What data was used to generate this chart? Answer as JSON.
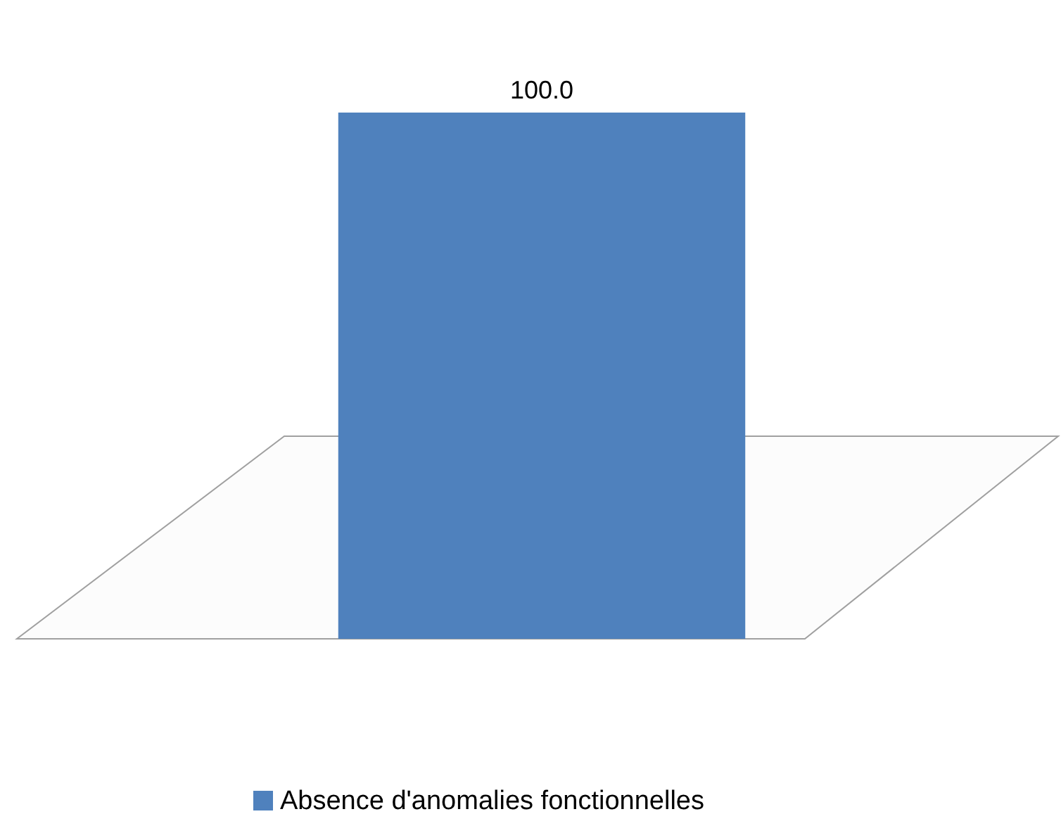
{
  "chart_data": {
    "type": "bar",
    "categories": [
      null
    ],
    "series": [
      {
        "name": "Absence d'anomalies fonctionnelles",
        "color": "#4f81bd",
        "values": [
          100.0
        ],
        "value_labels": [
          "100.0"
        ]
      }
    ],
    "data_labels": true,
    "legend": "bottom"
  }
}
